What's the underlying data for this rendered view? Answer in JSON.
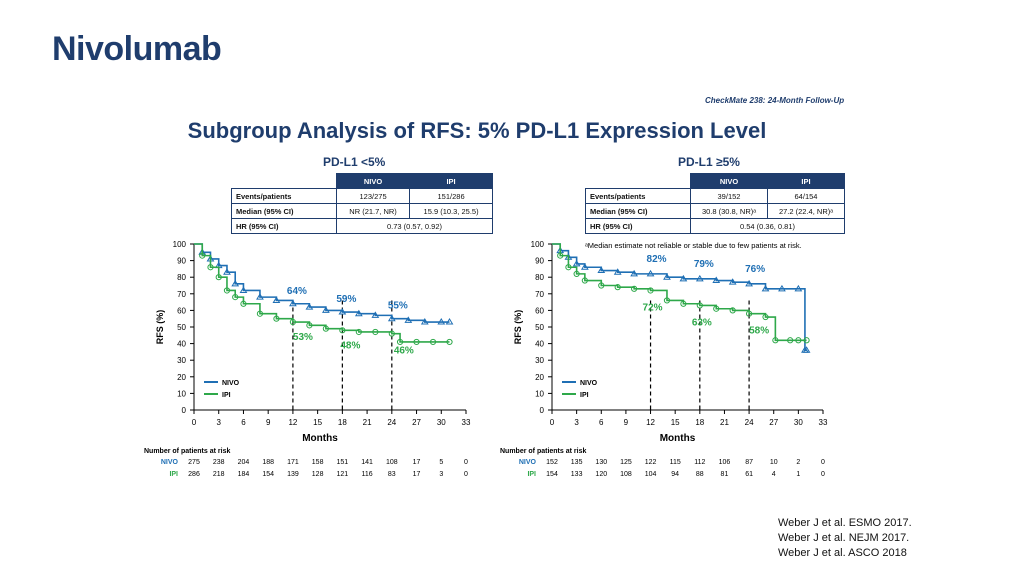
{
  "header": {
    "title": "Nivolumab",
    "study": "CheckMate 238: 24-Month Follow-Up",
    "subtitle": "Subgroup Analysis of RFS: 5% PD-L1 Expression Level"
  },
  "colors": {
    "nivo": "#1f6fb4",
    "ipi": "#2ea84a",
    "navy": "#1f3d6d"
  },
  "panels": [
    {
      "title": "PD-L1 <5%",
      "table": {
        "headers": [
          "",
          "NIVO",
          "IPI"
        ],
        "rows": [
          {
            "label": "Events/patients",
            "nivo": "123/275",
            "ipi": "151/286"
          },
          {
            "label": "Median (95% CI)",
            "nivo": "NR (21.7, NR)",
            "ipi": "15.9 (10.3, 25.5)"
          },
          {
            "label": "HR (95% CI)",
            "span": "0.73 (0.57, 0.92)"
          }
        ]
      },
      "footnote": "",
      "risk": {
        "title": "Number of patients at risk",
        "nivo_label": "NIVO",
        "ipi_label": "IPI",
        "nivo": [
          "275",
          "238",
          "204",
          "188",
          "171",
          "158",
          "151",
          "141",
          "108",
          "17",
          "5",
          "0"
        ],
        "ipi": [
          "286",
          "218",
          "184",
          "154",
          "139",
          "128",
          "121",
          "116",
          "83",
          "17",
          "3",
          "0"
        ]
      }
    },
    {
      "title": "PD-L1 ≥5%",
      "table": {
        "headers": [
          "",
          "NIVO",
          "IPI"
        ],
        "rows": [
          {
            "label": "Events/patients",
            "nivo": "39/152",
            "ipi": "64/154"
          },
          {
            "label": "Median (95% CI)",
            "nivo": "30.8 (30.8, NR)ᵃ",
            "ipi": "27.2 (22.4, NR)ᵃ"
          },
          {
            "label": "HR (95% CI)",
            "span": "0.54 (0.36, 0.81)"
          }
        ]
      },
      "footnote": "ᵃMedian estimate not reliable or stable due to few patients at risk.",
      "risk": {
        "title": "Number of patients at risk",
        "nivo_label": "NIVO",
        "ipi_label": "IPI",
        "nivo": [
          "152",
          "135",
          "130",
          "125",
          "122",
          "115",
          "112",
          "106",
          "87",
          "10",
          "2",
          "0"
        ],
        "ipi": [
          "154",
          "133",
          "120",
          "108",
          "104",
          "94",
          "88",
          "81",
          "61",
          "4",
          "1",
          "0"
        ]
      }
    }
  ],
  "chart_data": [
    {
      "type": "line",
      "title": "PD-L1 <5%",
      "xlabel": "Months",
      "ylabel": "RFS (%)",
      "xlim": [
        0,
        33
      ],
      "ylim": [
        0,
        100
      ],
      "xticks": [
        0,
        3,
        6,
        9,
        12,
        15,
        18,
        21,
        24,
        27,
        30,
        33
      ],
      "yticks": [
        0,
        10,
        20,
        30,
        40,
        50,
        60,
        70,
        80,
        90,
        100
      ],
      "legend": [
        "NIVO",
        "IPI"
      ],
      "legend_position": "bottom-left",
      "milestones": [
        12,
        18,
        24
      ],
      "series": [
        {
          "name": "NIVO",
          "x": [
            0,
            1,
            2,
            3,
            4,
            5,
            6,
            8,
            10,
            12,
            14,
            16,
            18,
            20,
            22,
            24,
            26,
            28,
            30,
            31
          ],
          "y": [
            100,
            95,
            91,
            87,
            83,
            76,
            72,
            68,
            66,
            64,
            62,
            60,
            59,
            58,
            57,
            55,
            54,
            53,
            53,
            53
          ]
        },
        {
          "name": "IPI",
          "x": [
            0,
            1,
            2,
            3,
            4,
            5,
            6,
            8,
            10,
            12,
            14,
            16,
            18,
            20,
            22,
            24,
            25,
            27,
            29,
            31
          ],
          "y": [
            100,
            93,
            86,
            80,
            72,
            68,
            64,
            58,
            55,
            53,
            51,
            49,
            48,
            47,
            47,
            46,
            41,
            41,
            41,
            41
          ]
        }
      ],
      "annotations": [
        {
          "series": "NIVO",
          "x": 12,
          "y": 64,
          "text": "64%"
        },
        {
          "series": "NIVO",
          "x": 18,
          "y": 59,
          "text": "59%"
        },
        {
          "series": "NIVO",
          "x": 24,
          "y": 55,
          "text": "55%"
        },
        {
          "series": "IPI",
          "x": 12,
          "y": 53,
          "text": "53%"
        },
        {
          "series": "IPI",
          "x": 18,
          "y": 48,
          "text": "48%"
        },
        {
          "series": "IPI",
          "x": 24,
          "y": 46,
          "text": "46%"
        }
      ]
    },
    {
      "type": "line",
      "title": "PD-L1 ≥5%",
      "xlabel": "Months",
      "ylabel": "RFS (%)",
      "xlim": [
        0,
        33
      ],
      "ylim": [
        0,
        100
      ],
      "xticks": [
        0,
        3,
        6,
        9,
        12,
        15,
        18,
        21,
        24,
        27,
        30,
        33
      ],
      "yticks": [
        0,
        10,
        20,
        30,
        40,
        50,
        60,
        70,
        80,
        90,
        100
      ],
      "legend": [
        "NIVO",
        "IPI"
      ],
      "legend_position": "bottom-left",
      "milestones": [
        12,
        18,
        24
      ],
      "series": [
        {
          "name": "NIVO",
          "x": [
            0,
            1,
            2,
            3,
            4,
            6,
            8,
            10,
            12,
            14,
            16,
            18,
            20,
            22,
            24,
            26,
            28,
            30,
            30.8,
            31
          ],
          "y": [
            100,
            96,
            92,
            88,
            86,
            84,
            83,
            82,
            82,
            80,
            79,
            79,
            78,
            77,
            76,
            73,
            73,
            73,
            36,
            36
          ]
        },
        {
          "name": "IPI",
          "x": [
            0,
            1,
            2,
            3,
            4,
            6,
            8,
            10,
            12,
            14,
            16,
            18,
            20,
            22,
            24,
            26,
            27.2,
            29,
            30,
            31
          ],
          "y": [
            100,
            93,
            86,
            82,
            78,
            75,
            74,
            73,
            72,
            66,
            64,
            63,
            61,
            60,
            58,
            56,
            42,
            42,
            42,
            42
          ]
        }
      ],
      "annotations": [
        {
          "series": "NIVO",
          "x": 12,
          "y": 82,
          "text": "82%"
        },
        {
          "series": "NIVO",
          "x": 18,
          "y": 79,
          "text": "79%"
        },
        {
          "series": "NIVO",
          "x": 24,
          "y": 76,
          "text": "76%"
        },
        {
          "series": "IPI",
          "x": 12,
          "y": 72,
          "text": "72%"
        },
        {
          "series": "IPI",
          "x": 18,
          "y": 63,
          "text": "63%"
        },
        {
          "series": "IPI",
          "x": 24,
          "y": 58,
          "text": "58%"
        }
      ]
    }
  ],
  "references": [
    "Weber J et al. ESMO 2017.",
    "Weber J et al. NEJM 2017.",
    "Weber J et al. ASCO 2018"
  ]
}
